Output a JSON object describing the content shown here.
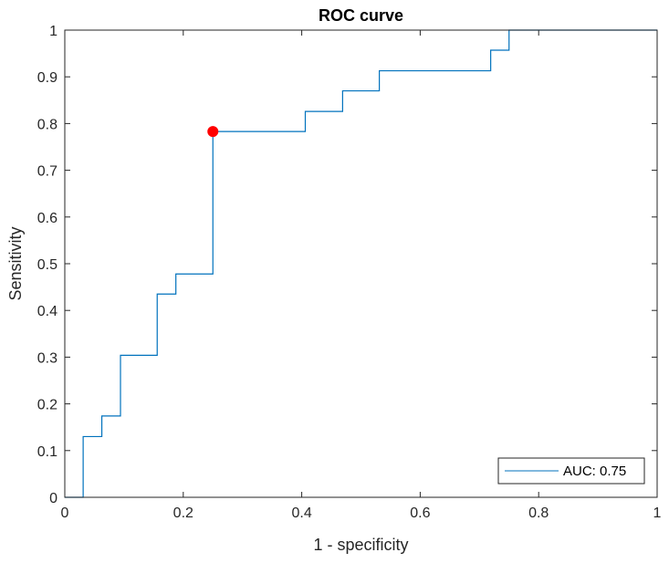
{
  "chart_data": {
    "type": "line",
    "title": "ROC curve",
    "xlabel": "1 - specificity",
    "ylabel": "Sensitivity",
    "xlim": [
      0,
      1
    ],
    "ylim": [
      0,
      1
    ],
    "xticks": [
      0,
      0.2,
      0.4,
      0.6,
      0.8,
      1
    ],
    "xtick_labels": [
      "0",
      "0.2",
      "0.4",
      "0.6",
      "0.8",
      "1"
    ],
    "yticks": [
      0,
      0.1,
      0.2,
      0.3,
      0.4,
      0.5,
      0.6,
      0.7,
      0.8,
      0.9,
      1
    ],
    "ytick_labels": [
      "0",
      "0.1",
      "0.2",
      "0.3",
      "0.4",
      "0.5",
      "0.6",
      "0.7",
      "0.8",
      "0.9",
      "1"
    ],
    "grid": false,
    "legend_position": "bottom-right",
    "series": [
      {
        "name": "AUC: 0.75",
        "color": "#0072bd",
        "x": [
          0,
          0.031,
          0.031,
          0.0625,
          0.0625,
          0.094,
          0.094,
          0.156,
          0.156,
          0.1875,
          0.1875,
          0.25,
          0.25,
          0.406,
          0.406,
          0.469,
          0.469,
          0.531,
          0.531,
          0.719,
          0.719,
          0.75,
          0.75,
          1.0
        ],
        "y": [
          0,
          0,
          0.13,
          0.13,
          0.174,
          0.174,
          0.304,
          0.304,
          0.435,
          0.435,
          0.478,
          0.478,
          0.783,
          0.783,
          0.826,
          0.826,
          0.87,
          0.87,
          0.913,
          0.913,
          0.957,
          0.957,
          1.0,
          1.0
        ]
      }
    ],
    "marker": {
      "x": 0.25,
      "y": 0.783,
      "color": "#ff0000"
    }
  }
}
